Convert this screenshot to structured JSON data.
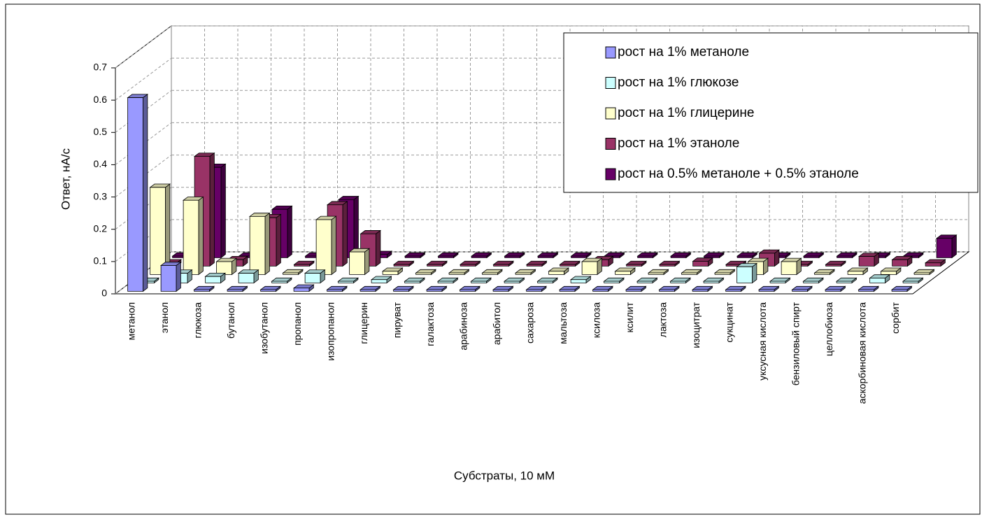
{
  "chart_data": {
    "type": "bar3d",
    "y_label": "Ответ, нА/с",
    "x_label": "Субстраты, 10 мМ",
    "categories": [
      "метанол",
      "этанол",
      "глюкоза",
      "бутанол",
      "изобутанол",
      "пропанол",
      "изопропанол",
      "глицерин",
      "пируват",
      "галактоза",
      "арабиноза",
      "арабитол",
      "сахароза",
      "мальтоза",
      "ксилоза",
      "ксилит",
      "лактоза",
      "изоцитрат",
      "сукцинат",
      "уксусная кислота",
      "бензиловый спирт",
      "целлобиоза",
      "аскорбиновая кислота",
      "сорбит"
    ],
    "series": [
      {
        "name": "рост на 1% метаноле",
        "color": "#9999ff",
        "values": [
          0.6,
          0.08,
          0.005,
          0.005,
          0.005,
          0.01,
          0.005,
          0.005,
          0.005,
          0.005,
          0.005,
          0.005,
          0.005,
          0.005,
          0.005,
          0.005,
          0.005,
          0.005,
          0.005,
          0.005,
          0.005,
          0.005,
          0.005,
          0.005
        ]
      },
      {
        "name": "рост на 1% глюкозе",
        "color": "#ccffff",
        "values": [
          0.005,
          0.03,
          0.02,
          0.03,
          0.005,
          0.03,
          0.005,
          0.01,
          0.005,
          0.005,
          0.005,
          0.005,
          0.005,
          0.01,
          0.005,
          0.005,
          0.005,
          0.005,
          0.05,
          0.005,
          0.005,
          0.005,
          0.015,
          0.005
        ]
      },
      {
        "name": "рост на 1% глицерине",
        "color": "#ffffcc",
        "values": [
          0.27,
          0.23,
          0.04,
          0.18,
          0.005,
          0.17,
          0.07,
          0.01,
          0.005,
          0.005,
          0.005,
          0.005,
          0.01,
          0.04,
          0.01,
          0.005,
          0.005,
          0.005,
          0.04,
          0.04,
          0.005,
          0.01,
          0.01,
          0.005
        ]
      },
      {
        "name": "рост на 1% этаноле",
        "color": "#993366",
        "values": [
          0.01,
          0.34,
          0.02,
          0.15,
          0.005,
          0.19,
          0.1,
          0.005,
          0.005,
          0.005,
          0.005,
          0.005,
          0.005,
          0.02,
          0.005,
          0.005,
          0.015,
          0.005,
          0.04,
          0.005,
          0.005,
          0.03,
          0.02,
          0.01
        ]
      },
      {
        "name": "рост на 0.5% метаноле + 0.5% этаноле",
        "color": "#660066",
        "values": [
          0.005,
          0.28,
          0.005,
          0.15,
          0.005,
          0.18,
          0.01,
          0.005,
          0.005,
          0.005,
          0.005,
          0.005,
          0.005,
          0.005,
          0.005,
          0.005,
          0.005,
          0.005,
          0.005,
          0.005,
          0.005,
          0.005,
          0.005,
          0.06
        ]
      }
    ],
    "ylim": [
      0,
      0.7
    ],
    "yticks": [
      0,
      0.1,
      0.2,
      0.3,
      0.4,
      0.5,
      0.6,
      0.7
    ],
    "grid": true,
    "legend": "upper right"
  }
}
